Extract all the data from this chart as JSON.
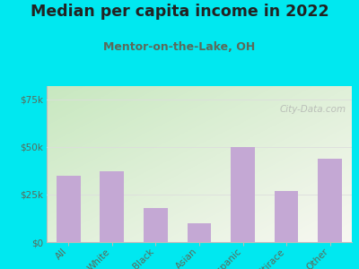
{
  "title": "Median per capita income in 2022",
  "subtitle": "Mentor-on-the-Lake, OH",
  "categories": [
    "All",
    "White",
    "Black",
    "Asian",
    "Hispanic",
    "Multirace",
    "Other"
  ],
  "values": [
    35000,
    37000,
    18000,
    10000,
    50000,
    27000,
    44000
  ],
  "bar_color": "#c4a8d4",
  "title_color": "#222222",
  "subtitle_color": "#5a6a5a",
  "background_color": "#00e8f0",
  "plot_bg_top_left": "#c8e8c0",
  "plot_bg_bottom_right": "#f8f8f2",
  "yticks": [
    0,
    25000,
    50000,
    75000
  ],
  "ylim": [
    0,
    82000
  ],
  "watermark": "City-Data.com",
  "tick_label_color": "#5a6a5a",
  "grid_color": "#dddddd",
  "spine_color": "#bbbbbb"
}
